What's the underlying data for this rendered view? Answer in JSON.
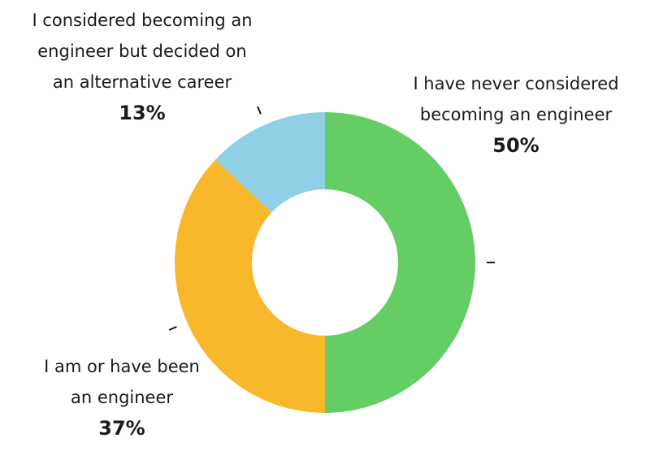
{
  "chart_data": {
    "type": "pie",
    "variant": "donut",
    "legend": "none",
    "slices": [
      {
        "label_lines": [
          "I have never considered",
          "becoming an engineer"
        ],
        "percent_label": "50%",
        "value": 50,
        "color": "#64cd64"
      },
      {
        "label_lines": [
          "I am or have been",
          "an engineer"
        ],
        "percent_label": "37%",
        "value": 37,
        "color": "#f8b82c"
      },
      {
        "label_lines": [
          "I considered becoming an",
          "engineer but decided on",
          "an alternative career"
        ],
        "percent_label": "13%",
        "value": 13,
        "color": "#8fd0e6"
      }
    ]
  }
}
